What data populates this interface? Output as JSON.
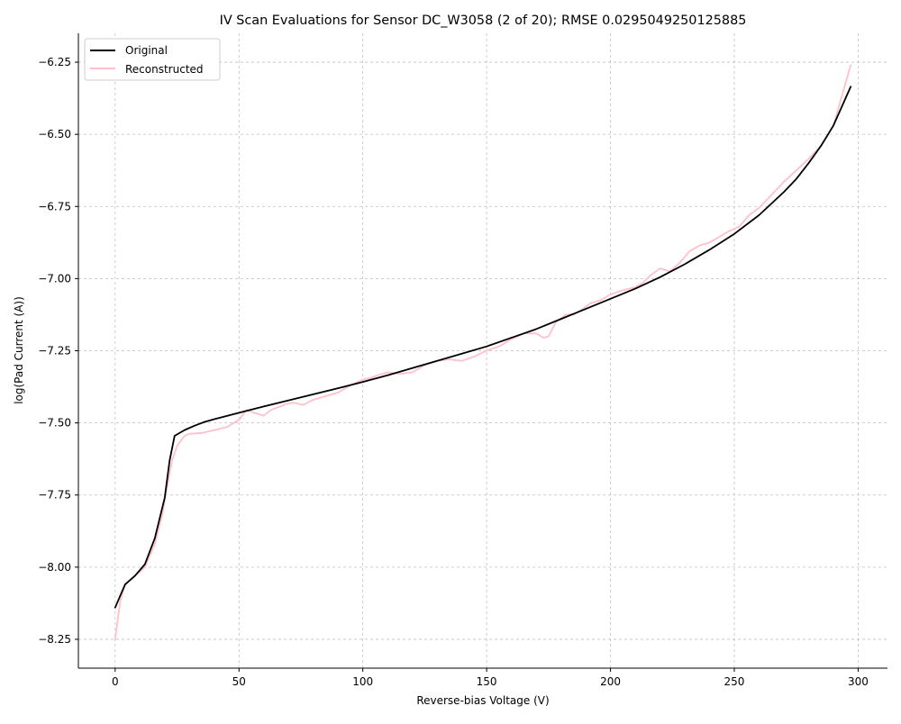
{
  "chart_data": {
    "type": "line",
    "title": "IV Scan Evaluations for Sensor DC_W3058 (2 of 20); RMSE 0.0295049250125885",
    "xlabel": "Reverse-bias Voltage (V)",
    "ylabel": "log(Pad Current (A))",
    "xlim": [
      -14.85,
      311.85
    ],
    "ylim": [
      -8.35,
      -6.15
    ],
    "xticks": [
      0,
      50,
      100,
      150,
      200,
      250,
      300
    ],
    "yticks": [
      -8.25,
      -8.0,
      -7.75,
      -7.5,
      -7.25,
      -7.0,
      -6.75,
      -6.5,
      -6.25
    ],
    "xtick_labels": [
      "0",
      "50",
      "100",
      "150",
      "200",
      "250",
      "300"
    ],
    "ytick_labels": [
      "−8.25",
      "−8.00",
      "−7.75",
      "−7.50",
      "−7.25",
      "−7.00",
      "−6.75",
      "−6.50",
      "−6.25"
    ],
    "grid": true,
    "legend_position": "upper-left",
    "series": [
      {
        "name": "Original",
        "color": "#000000",
        "x": [
          0,
          4,
          8,
          12,
          16,
          20,
          22,
          24,
          28,
          32,
          36,
          40,
          50,
          60,
          70,
          80,
          90,
          100,
          110,
          120,
          130,
          140,
          150,
          160,
          170,
          180,
          190,
          200,
          210,
          220,
          230,
          240,
          250,
          260,
          270,
          275,
          280,
          285,
          290,
          297
        ],
        "y": [
          -8.14,
          -8.06,
          -8.03,
          -7.99,
          -7.9,
          -7.76,
          -7.63,
          -7.545,
          -7.525,
          -7.51,
          -7.497,
          -7.487,
          -7.465,
          -7.443,
          -7.422,
          -7.401,
          -7.38,
          -7.358,
          -7.335,
          -7.31,
          -7.285,
          -7.26,
          -7.235,
          -7.205,
          -7.175,
          -7.14,
          -7.105,
          -7.07,
          -7.035,
          -6.995,
          -6.95,
          -6.9,
          -6.845,
          -6.78,
          -6.7,
          -6.655,
          -6.6,
          -6.54,
          -6.47,
          -6.335
        ]
      },
      {
        "name": "Reconstructed",
        "color": "#ffc0cb",
        "x": [
          0,
          2,
          4,
          8,
          12,
          16,
          19,
          21,
          23,
          25,
          28,
          30,
          35,
          40,
          45,
          50,
          53,
          56,
          60,
          63,
          66,
          69,
          72,
          76,
          80,
          86,
          90,
          95,
          100,
          103,
          106,
          110,
          115,
          120,
          125,
          130,
          135,
          140,
          145,
          150,
          155,
          160,
          165,
          170,
          173,
          175,
          178,
          182,
          185,
          188,
          192,
          196,
          200,
          205,
          210,
          213,
          216,
          220,
          224,
          228,
          232,
          236,
          240,
          245,
          248,
          252,
          256,
          260,
          265,
          270,
          275,
          280,
          285,
          290,
          297
        ],
        "y": [
          -8.25,
          -8.12,
          -8.06,
          -8.03,
          -8.0,
          -7.92,
          -7.82,
          -7.72,
          -7.63,
          -7.58,
          -7.545,
          -7.538,
          -7.535,
          -7.525,
          -7.515,
          -7.49,
          -7.455,
          -7.465,
          -7.475,
          -7.455,
          -7.445,
          -7.435,
          -7.43,
          -7.438,
          -7.42,
          -7.405,
          -7.395,
          -7.37,
          -7.35,
          -7.345,
          -7.335,
          -7.325,
          -7.33,
          -7.325,
          -7.3,
          -7.285,
          -7.28,
          -7.285,
          -7.27,
          -7.25,
          -7.235,
          -7.21,
          -7.19,
          -7.19,
          -7.205,
          -7.2,
          -7.15,
          -7.125,
          -7.125,
          -7.11,
          -7.085,
          -7.075,
          -7.055,
          -7.04,
          -7.03,
          -7.015,
          -6.99,
          -6.965,
          -6.975,
          -6.945,
          -6.905,
          -6.885,
          -6.875,
          -6.85,
          -6.835,
          -6.82,
          -6.78,
          -6.755,
          -6.71,
          -6.665,
          -6.625,
          -6.585,
          -6.54,
          -6.47,
          -6.26
        ]
      }
    ]
  }
}
